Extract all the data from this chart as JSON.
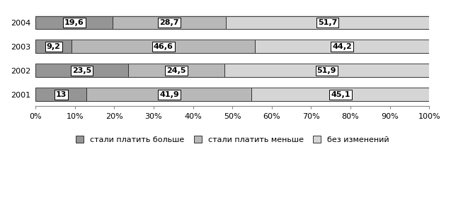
{
  "years": [
    "2004",
    "2003",
    "2002",
    "2001"
  ],
  "series": {
    "стали платить больше": [
      19.6,
      9.2,
      23.5,
      13.0
    ],
    "стали платить меньше": [
      28.7,
      46.6,
      24.5,
      41.9
    ],
    "без изменений": [
      51.7,
      44.2,
      51.9,
      45.1
    ]
  },
  "colors": {
    "стали платить больше": "#959595",
    "стали платить меньше": "#b8b8b8",
    "без изменений": "#d5d5d5"
  },
  "bar_height": 0.55,
  "xlim": [
    0,
    100
  ],
  "xticks": [
    0,
    10,
    20,
    30,
    40,
    50,
    60,
    70,
    80,
    90,
    100
  ],
  "xtick_labels": [
    "0%",
    "10%",
    "20%",
    "30%",
    "40%",
    "50%",
    "60%",
    "70%",
    "80%",
    "90%",
    "100%"
  ],
  "legend_labels": [
    "стали платить больше",
    "стали платить меньше",
    "без изменений"
  ],
  "legend_colors": [
    "#959595",
    "#b8b8b8",
    "#d5d5d5"
  ],
  "background_color": "#ffffff",
  "label_fontsize": 8,
  "tick_fontsize": 8,
  "legend_fontsize": 8
}
